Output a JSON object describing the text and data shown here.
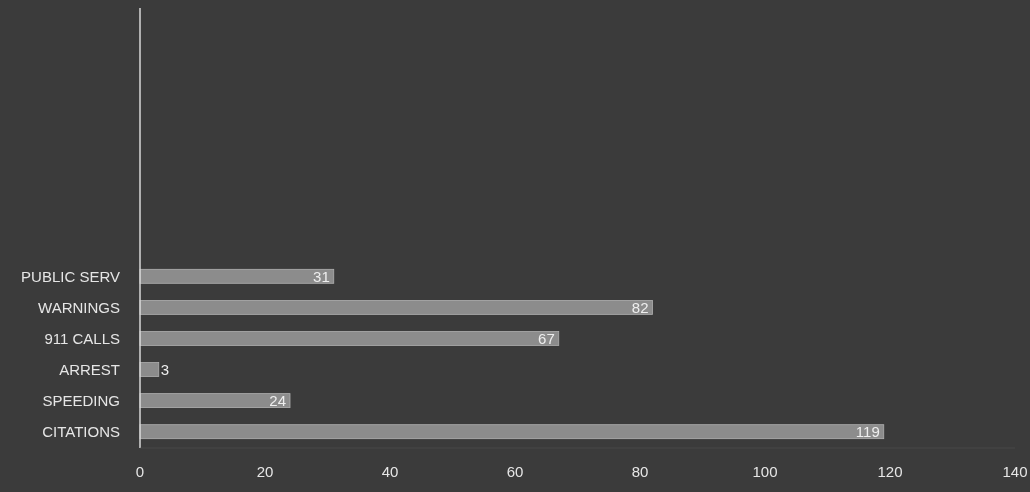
{
  "chart_data": {
    "type": "bar",
    "orientation": "horizontal",
    "categories": [
      "PUBLIC SERV",
      "WARNINGS",
      "911 CALLS",
      "ARREST",
      "SPEEDING",
      "CITATIONS"
    ],
    "values": [
      31,
      82,
      67,
      3,
      24,
      119
    ],
    "color": "#8c8c8c",
    "xlim": [
      0,
      140
    ],
    "xticks": [
      0,
      20,
      40,
      60,
      80,
      100,
      120,
      140
    ],
    "data_labels": true
  }
}
